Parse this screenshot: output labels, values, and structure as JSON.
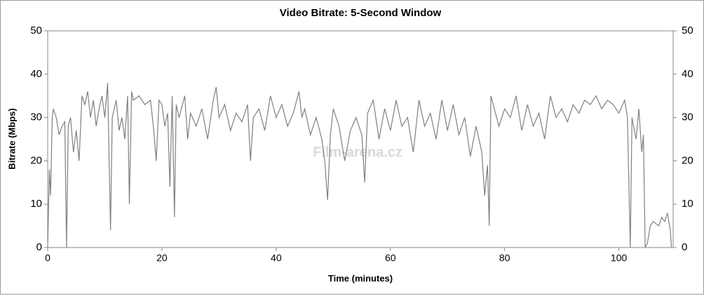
{
  "chart_data": {
    "type": "line",
    "title": "Video Bitrate: 5-Second Window",
    "x_label": "Time (minutes)",
    "y_label": "Bitrate (Mbps)",
    "watermark": "Film-arena.cz",
    "xlim": [
      0,
      109.5
    ],
    "xticks": [
      0,
      20,
      40,
      60,
      80,
      100
    ],
    "ylim": [
      0,
      50
    ],
    "yticks": [
      0,
      10,
      20,
      30,
      40,
      50
    ],
    "y2lim": [
      0,
      50
    ],
    "y2ticks": [
      0,
      10,
      20,
      30,
      40,
      50
    ],
    "x": [
      0,
      0.3,
      0.5,
      0.8,
      1,
      1.5,
      2,
      2.5,
      3,
      3.3,
      3.6,
      4,
      4.5,
      5,
      5.5,
      6,
      6.5,
      7,
      7.5,
      8,
      8.5,
      9,
      9.5,
      10,
      10.5,
      11,
      11.3,
      12,
      12.5,
      13,
      13.5,
      14,
      14.3,
      14.7,
      15,
      16,
      17,
      18,
      18.5,
      19,
      19.5,
      20,
      20.5,
      21,
      21.4,
      21.8,
      22.2,
      22.5,
      23,
      24,
      24.5,
      25,
      26,
      27,
      28,
      29,
      29.5,
      30,
      31,
      32,
      33,
      34,
      35,
      35.5,
      36,
      37,
      38,
      39,
      40,
      41,
      42,
      43,
      44,
      44.5,
      45,
      46,
      47,
      48,
      48.5,
      49,
      49.5,
      50,
      51,
      52,
      53,
      54,
      55,
      55.5,
      56,
      57,
      58,
      59,
      60,
      61,
      62,
      63,
      64,
      65,
      66,
      67,
      68,
      69,
      70,
      71,
      72,
      73,
      74,
      75,
      76,
      76.5,
      77,
      77.3,
      77.6,
      78,
      79,
      80,
      81,
      82,
      83,
      84,
      85,
      86,
      87,
      88,
      89,
      90,
      91,
      92,
      93,
      94,
      95,
      96,
      97,
      98,
      99,
      100,
      101,
      101.5,
      102,
      102.3,
      103,
      103.5,
      104,
      104.3,
      104.6,
      105,
      105.5,
      106,
      107,
      107.5,
      108,
      108.5,
      109,
      109.2
    ],
    "series": [
      {
        "name": "Video Bitrate",
        "color": "#808080",
        "values": [
          0,
          18,
          12,
          30,
          32,
          30,
          26,
          28,
          29,
          0,
          28,
          30,
          22,
          27,
          20,
          35,
          33,
          36,
          30,
          34,
          28,
          32,
          35,
          30,
          38,
          4,
          30,
          34,
          27,
          30,
          25,
          35,
          10,
          36,
          34,
          35,
          33,
          34,
          28,
          20,
          34,
          33,
          28,
          31,
          14,
          35,
          7,
          33,
          30,
          35,
          25,
          31,
          28,
          32,
          25,
          34,
          37,
          30,
          33,
          27,
          31,
          29,
          33,
          20,
          30,
          32,
          27,
          35,
          30,
          33,
          28,
          31,
          36,
          30,
          32,
          26,
          30,
          25,
          20,
          11,
          26,
          32,
          28,
          20,
          27,
          30,
          26,
          15,
          31,
          34,
          25,
          32,
          27,
          34,
          28,
          30,
          22,
          34,
          28,
          31,
          25,
          34,
          27,
          33,
          26,
          30,
          21,
          28,
          22,
          12,
          19,
          5,
          35,
          33,
          28,
          32,
          30,
          35,
          27,
          33,
          28,
          31,
          25,
          35,
          30,
          32,
          29,
          33,
          31,
          34,
          33,
          35,
          32,
          34,
          33,
          31,
          34,
          30,
          0,
          30,
          25,
          32,
          22,
          26,
          0,
          1,
          5,
          6,
          5,
          7,
          6,
          8,
          4,
          0
        ]
      }
    ]
  }
}
